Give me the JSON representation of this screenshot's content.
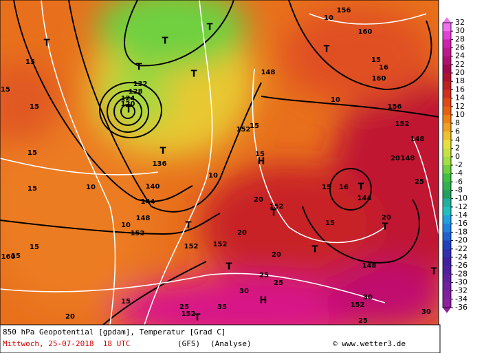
{
  "map": {
    "labels": [
      "T",
      "T",
      "124",
      "120",
      "128",
      "132",
      "T",
      "T",
      "T",
      "T",
      "T",
      "136",
      "140",
      "144",
      "148",
      "152",
      "10",
      "10",
      "15",
      "15",
      "15",
      "15",
      "10",
      "156",
      "160",
      "160",
      "15",
      "16",
      "10",
      "156",
      "152",
      "T",
      "148",
      "152",
      "15",
      "15",
      "H",
      "10",
      "20",
      "152",
      "T",
      "T",
      "152",
      "152",
      "20",
      "T",
      "20",
      "15",
      "144",
      "T",
      "15",
      "16",
      "20",
      "148",
      "148",
      "25",
      "20",
      "T",
      "148",
      "T",
      "25",
      "25",
      "30",
      "H",
      "15",
      "20",
      "25",
      "35",
      "T",
      "152",
      "152",
      "30",
      "25",
      "30",
      "15",
      "160",
      "15",
      "15",
      "T"
    ]
  },
  "colorbar": {
    "ticks": [
      32,
      30,
      28,
      26,
      24,
      22,
      20,
      18,
      16,
      14,
      12,
      10,
      8,
      6,
      4,
      2,
      0,
      -2,
      -4,
      -6,
      -8,
      -10,
      -12,
      -14,
      -16,
      -18,
      -20,
      -22,
      -24,
      -26,
      -28,
      -30,
      -32,
      -34,
      -36
    ],
    "colors": [
      "#f070f0",
      "#e040d8",
      "#d020b0",
      "#c01890",
      "#b01070",
      "#a00850",
      "#b01030",
      "#c02020",
      "#d03020",
      "#e04818",
      "#e86010",
      "#f08010",
      "#f0a020",
      "#f0c030",
      "#e8e040",
      "#c8e040",
      "#a0e040",
      "#70d040",
      "#40c040",
      "#30b050",
      "#20a060",
      "#20b0a0",
      "#20c0c0",
      "#20a0e0",
      "#2080e0",
      "#2060d0",
      "#2040c0",
      "#3030b0",
      "#4020a0",
      "#5020a0",
      "#6020a0",
      "#7020a0",
      "#8020a0",
      "#9020a0"
    ]
  },
  "footer": {
    "line1": "850 hPa Geopotential [gpdam], Temperatur [Grad C]",
    "date": "Mittwoch, 25-07-2018  18 UTC",
    "model": "(GFS)",
    "run": "(Analyse)",
    "credit": "© www.wetter3.de"
  }
}
